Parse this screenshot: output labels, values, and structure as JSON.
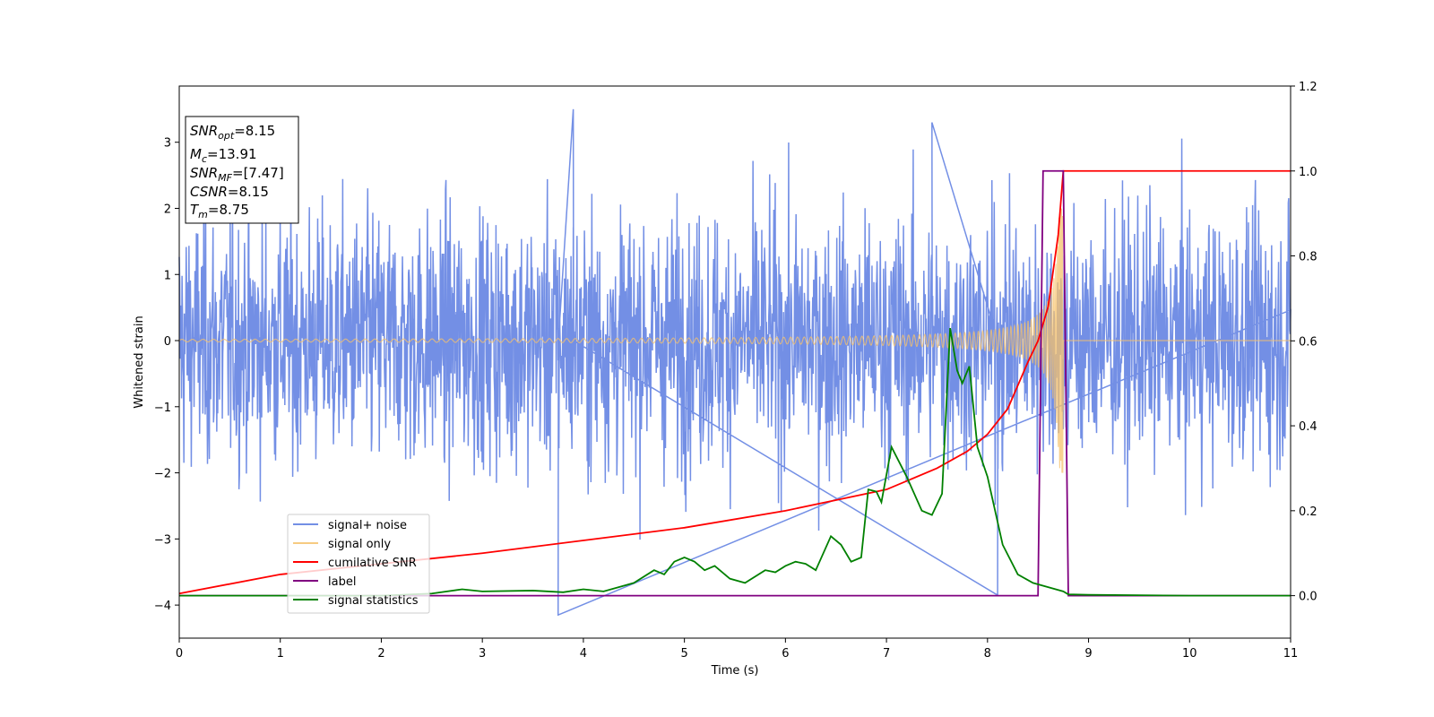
{
  "chart_data": {
    "type": "line",
    "xlabel": "Time (s)",
    "ylabel": "Whitened strain",
    "xlim": [
      0,
      11
    ],
    "ylim_left": [
      -4.5,
      3.85
    ],
    "ylim_right": [
      -0.1,
      1.2
    ],
    "x_ticks": [
      0,
      1,
      2,
      3,
      4,
      5,
      6,
      7,
      8,
      9,
      10,
      11
    ],
    "y_ticks_left": [
      -4,
      -3,
      -2,
      -1,
      0,
      1,
      2,
      3
    ],
    "y_ticks_left_labels": [
      "−4",
      "−3",
      "−2",
      "−1",
      "0",
      "1",
      "2",
      "3"
    ],
    "y_ticks_right": [
      0.0,
      0.2,
      0.4,
      0.6,
      0.8,
      1.0,
      1.2
    ],
    "y_ticks_right_labels": [
      "0.0",
      "0.2",
      "0.4",
      "0.6",
      "0.8",
      "1.0",
      "1.2"
    ],
    "grid": false,
    "legend_position": "lower-left",
    "annotation": {
      "snr_opt": {
        "base": "SNR",
        "sub": "opt",
        "value": "=8.15"
      },
      "mc": {
        "base": "M",
        "sub": "c",
        "value": "=13.91"
      },
      "snr_mf": {
        "base": "SNR",
        "sub": "MF",
        "value": "=[7.47]"
      },
      "csnr": {
        "base": "CSNR",
        "value": "=8.15"
      },
      "tm": {
        "base": "T",
        "sub": "m",
        "value": "=8.75"
      }
    },
    "series": [
      {
        "name": "signal+ noise",
        "axis": "left",
        "color": "#5b7be0",
        "noise_amplitude_std": 0.95,
        "spikes": [
          [
            3.75,
            -4.15
          ],
          [
            3.9,
            3.5
          ],
          [
            8.1,
            -3.85
          ],
          [
            7.45,
            3.3
          ]
        ]
      },
      {
        "name": "signal only",
        "axis": "left",
        "color": "#f5c26b",
        "chirp_start": 0.0,
        "merger_time": 8.75,
        "peak_amplitude": 2.0
      },
      {
        "name": "cumilative SNR",
        "axis": "right",
        "color": "#ff0000",
        "x": [
          0.0,
          1.0,
          2.0,
          3.0,
          4.0,
          5.0,
          6.0,
          6.5,
          7.0,
          7.5,
          7.8,
          8.0,
          8.2,
          8.4,
          8.5,
          8.6,
          8.7,
          8.75,
          11.0
        ],
        "y": [
          0.005,
          0.05,
          0.075,
          0.1,
          0.13,
          0.16,
          0.2,
          0.225,
          0.25,
          0.3,
          0.34,
          0.38,
          0.44,
          0.55,
          0.6,
          0.68,
          0.85,
          1.0,
          1.0
        ]
      },
      {
        "name": "label",
        "axis": "right",
        "color": "#800080",
        "x": [
          0.0,
          8.5,
          8.55,
          8.75,
          8.8,
          11.0
        ],
        "y": [
          0.0,
          0.0,
          1.0,
          1.0,
          0.0,
          0.0
        ]
      },
      {
        "name": "signal statistics",
        "axis": "right",
        "color": "#008000",
        "x": [
          0.0,
          1.0,
          2.0,
          2.5,
          2.8,
          3.0,
          3.5,
          3.8,
          4.0,
          4.2,
          4.5,
          4.7,
          4.8,
          4.9,
          5.0,
          5.1,
          5.2,
          5.3,
          5.45,
          5.6,
          5.8,
          5.9,
          6.0,
          6.1,
          6.2,
          6.3,
          6.45,
          6.55,
          6.65,
          6.75,
          6.82,
          6.9,
          6.95,
          7.05,
          7.2,
          7.35,
          7.45,
          7.55,
          7.63,
          7.7,
          7.75,
          7.82,
          7.9,
          8.0,
          8.15,
          8.3,
          8.45,
          8.6,
          8.75,
          8.8,
          9.0,
          10.0,
          11.0
        ],
        "y": [
          0.0,
          0.0,
          0.0,
          0.005,
          0.015,
          0.01,
          0.012,
          0.008,
          0.015,
          0.01,
          0.03,
          0.06,
          0.05,
          0.08,
          0.09,
          0.08,
          0.06,
          0.07,
          0.04,
          0.03,
          0.06,
          0.055,
          0.07,
          0.08,
          0.075,
          0.06,
          0.14,
          0.12,
          0.08,
          0.09,
          0.25,
          0.245,
          0.22,
          0.35,
          0.28,
          0.2,
          0.19,
          0.24,
          0.63,
          0.53,
          0.5,
          0.54,
          0.35,
          0.28,
          0.12,
          0.05,
          0.03,
          0.02,
          0.01,
          0.003,
          0.002,
          0.0,
          0.0
        ]
      }
    ]
  }
}
